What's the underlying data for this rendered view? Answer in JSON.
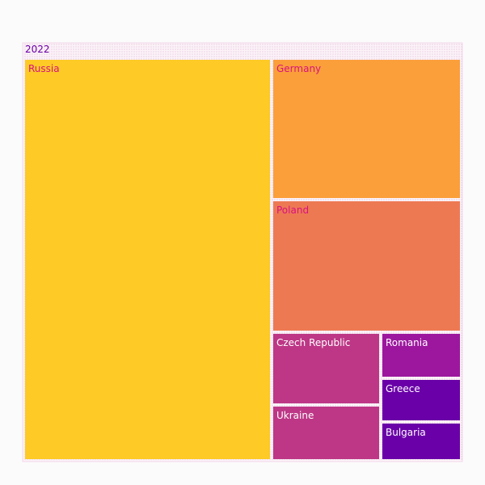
{
  "chart_data": {
    "type": "treemap",
    "root": {
      "label": "2022",
      "color": "#f8eaf5"
    },
    "tiles": [
      {
        "label": "Russia",
        "value": 37.9,
        "color": "#fdca26",
        "label_color": "#d8137f"
      },
      {
        "label": "Germany",
        "value": 10.3,
        "color": "#fb9f3a",
        "label_color": "#d8137f"
      },
      {
        "label": "Poland",
        "value": 9.6,
        "color": "#ed7953",
        "label_color": "#d8137f"
      },
      {
        "label": "Czech Republic",
        "value": 2.9,
        "color": "#bd3786",
        "label_color": "#ffffff"
      },
      {
        "label": "Ukraine",
        "value": 2.4,
        "color": "#bd3786",
        "label_color": "#ffffff"
      },
      {
        "label": "Romania",
        "value": 1.9,
        "color": "#9c179e",
        "label_color": "#ffffff"
      },
      {
        "label": "Greece",
        "value": 1.7,
        "color": "#6a00a8",
        "label_color": "#ffffff"
      },
      {
        "label": "Bulgaria",
        "value": 1.6,
        "color": "#6a00a8",
        "label_color": "#ffffff"
      }
    ]
  }
}
